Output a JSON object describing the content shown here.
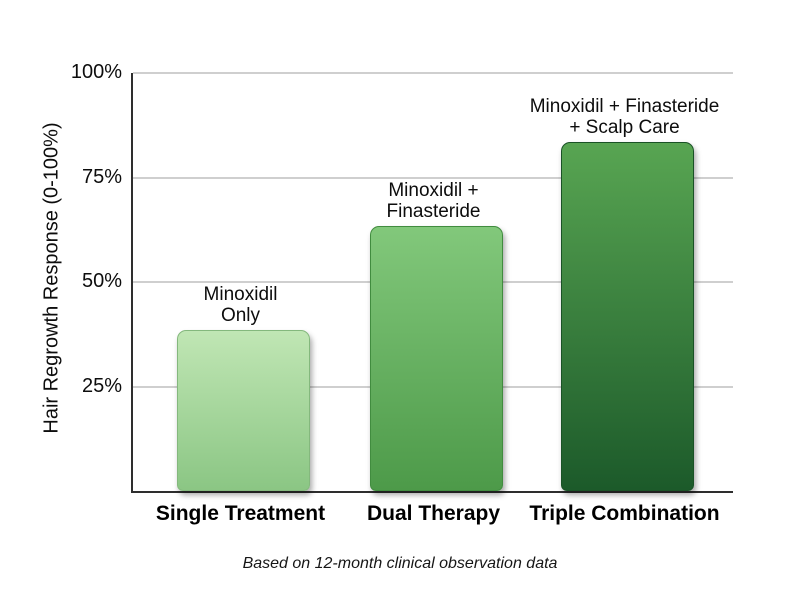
{
  "chart_data": {
    "type": "bar",
    "title": "",
    "ylabel": "Hair Regrowth Response (0-100%)",
    "xlabel": "",
    "caption": "Based on 12-month clinical observation data",
    "ylim": [
      0,
      100
    ],
    "grid": true,
    "legend": false,
    "axis_color": "#2e2e2e",
    "grid_color": "#cfcfcf",
    "yticks": [
      {
        "value": 100,
        "label": "100%"
      },
      {
        "value": 75,
        "label": "75%"
      },
      {
        "value": 50,
        "label": "50%"
      },
      {
        "value": 25,
        "label": "25%"
      }
    ],
    "categories": [
      "Single Treatment",
      "Dual Therapy",
      "Triple Combination"
    ],
    "values": [
      38,
      63,
      83
    ],
    "bars": [
      {
        "category": "Single Treatment",
        "label_lines": [
          "Minoxidil",
          "Only"
        ],
        "value": 38,
        "color_top": "#c0e6b4",
        "color_bottom": "#8bc684",
        "border_color": "#84b87d"
      },
      {
        "category": "Dual Therapy",
        "label_lines": [
          "Minoxidil +",
          "Finasteride"
        ],
        "value": 63,
        "color_top": "#82c87b",
        "color_bottom": "#4d9a49",
        "border_color": "#418c3f"
      },
      {
        "category": "Triple Combination",
        "label_lines": [
          "Minoxidil + Finasteride",
          "+ Scalp Care"
        ],
        "value": 83,
        "color_top": "#58a552",
        "color_bottom": "#1c5a2a",
        "border_color": "#1a5226"
      }
    ]
  }
}
